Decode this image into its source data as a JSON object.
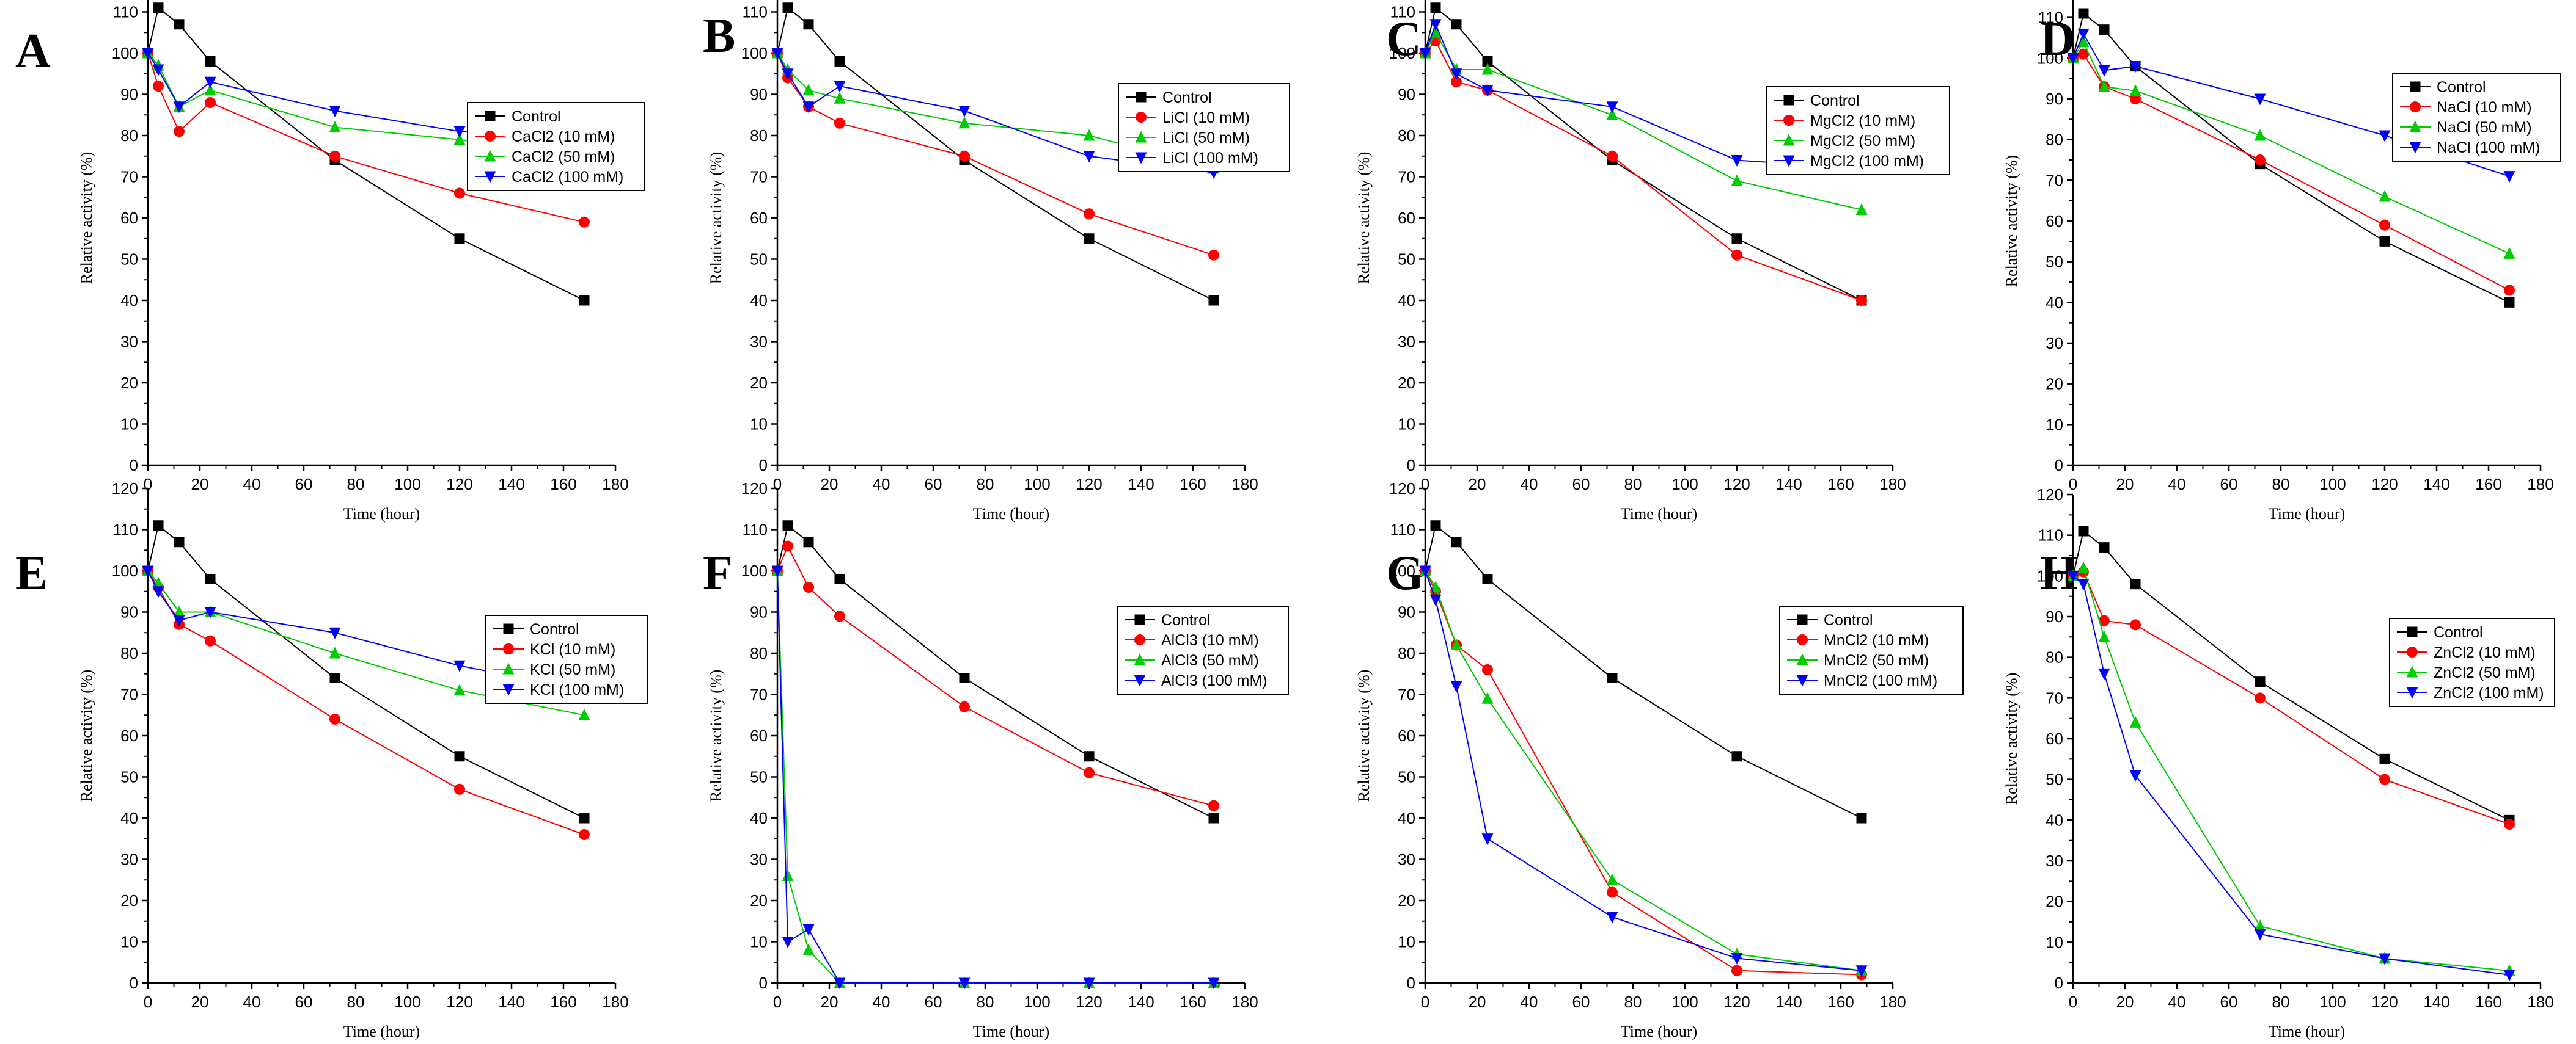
{
  "chart_data": [
    {
      "panel": "A",
      "type": "line",
      "xlabel": "Time (hour)",
      "ylabel": "Relative activity (%)",
      "xlim": [
        0,
        180
      ],
      "ylim": [
        0,
        120
      ],
      "xticks": [
        "0",
        "20",
        "40",
        "60",
        "80",
        "100",
        "120",
        "140",
        "160",
        "180"
      ],
      "yticks": [
        "0",
        "10",
        "20",
        "30",
        "40",
        "50",
        "60",
        "70",
        "80",
        "90",
        "100",
        "110",
        "120"
      ],
      "legend_position": "top-right",
      "series": [
        {
          "name": "Control",
          "color": "#000000",
          "marker": "square",
          "x": [
            0,
            4,
            12,
            24,
            72,
            120,
            168
          ],
          "y": [
            100,
            111,
            107,
            98,
            74,
            55,
            40
          ]
        },
        {
          "name": "CaCl2 (10 mM)",
          "color": "#ff0000",
          "marker": "circle",
          "x": [
            0,
            4,
            12,
            24,
            72,
            120,
            168
          ],
          "y": [
            100,
            92,
            81,
            88,
            75,
            66,
            59
          ]
        },
        {
          "name": "CaCl2 (50 mM)",
          "color": "#00cc00",
          "marker": "triangle-up",
          "x": [
            0,
            4,
            12,
            24,
            72,
            120,
            168
          ],
          "y": [
            100,
            97,
            87,
            91,
            82,
            79,
            75
          ]
        },
        {
          "name": "CaCl2 (100 mM)",
          "color": "#0000ff",
          "marker": "triangle-down",
          "x": [
            0,
            4,
            12,
            24,
            72,
            120,
            168
          ],
          "y": [
            100,
            96,
            87,
            93,
            86,
            81,
            81
          ]
        }
      ]
    },
    {
      "panel": "B",
      "type": "line",
      "xlabel": "Time (hour)",
      "ylabel": "Relative activity (%)",
      "xlim": [
        0,
        180
      ],
      "ylim": [
        0,
        120
      ],
      "xticks": [
        "0",
        "20",
        "40",
        "60",
        "80",
        "100",
        "120",
        "140",
        "160",
        "180"
      ],
      "yticks": [
        "0",
        "10",
        "20",
        "30",
        "40",
        "50",
        "60",
        "70",
        "80",
        "90",
        "100",
        "110",
        "120"
      ],
      "legend_position": "top-right",
      "series": [
        {
          "name": "Control",
          "color": "#000000",
          "marker": "square",
          "x": [
            0,
            4,
            12,
            24,
            72,
            120,
            168
          ],
          "y": [
            100,
            111,
            107,
            98,
            74,
            55,
            40
          ]
        },
        {
          "name": "LiCl (10 mM)",
          "color": "#ff0000",
          "marker": "circle",
          "x": [
            0,
            4,
            12,
            24,
            72,
            120,
            168
          ],
          "y": [
            100,
            94,
            87,
            83,
            75,
            61,
            51
          ]
        },
        {
          "name": "LiCl (50 mM)",
          "color": "#00cc00",
          "marker": "triangle-up",
          "x": [
            0,
            4,
            12,
            24,
            72,
            120,
            168
          ],
          "y": [
            100,
            96,
            91,
            89,
            83,
            80,
            72
          ]
        },
        {
          "name": "LiCl (100 mM)",
          "color": "#0000ff",
          "marker": "triangle-down",
          "x": [
            0,
            4,
            12,
            24,
            72,
            120,
            168
          ],
          "y": [
            100,
            95,
            87,
            92,
            86,
            75,
            71
          ]
        }
      ]
    },
    {
      "panel": "C",
      "type": "line",
      "xlabel": "Time (hour)",
      "ylabel": "Relative activity (%)",
      "xlim": [
        0,
        180
      ],
      "ylim": [
        0,
        120
      ],
      "xticks": [
        "0",
        "20",
        "40",
        "60",
        "80",
        "100",
        "120",
        "140",
        "160",
        "180"
      ],
      "yticks": [
        "0",
        "10",
        "20",
        "30",
        "40",
        "50",
        "60",
        "70",
        "80",
        "90",
        "100",
        "110",
        "120"
      ],
      "legend_position": "top-right",
      "series": [
        {
          "name": "Control",
          "color": "#000000",
          "marker": "square",
          "x": [
            0,
            4,
            12,
            24,
            72,
            120,
            168
          ],
          "y": [
            100,
            111,
            107,
            98,
            74,
            55,
            40
          ]
        },
        {
          "name": "MgCl2 (10 mM)",
          "color": "#ff0000",
          "marker": "circle",
          "x": [
            0,
            4,
            12,
            24,
            72,
            120,
            168
          ],
          "y": [
            100,
            103,
            93,
            91,
            75,
            51,
            40
          ]
        },
        {
          "name": "MgCl2 (50 mM)",
          "color": "#00cc00",
          "marker": "triangle-up",
          "x": [
            0,
            4,
            12,
            24,
            72,
            120,
            168
          ],
          "y": [
            100,
            105,
            96,
            96,
            85,
            69,
            62
          ]
        },
        {
          "name": "MgCl2 (100 mM)",
          "color": "#0000ff",
          "marker": "triangle-down",
          "x": [
            0,
            4,
            12,
            24,
            72,
            120,
            168
          ],
          "y": [
            100,
            107,
            95,
            91,
            87,
            74,
            72
          ]
        }
      ]
    },
    {
      "panel": "D",
      "type": "line",
      "xlabel": "Time (hour)",
      "ylabel": "Relative activity (%)",
      "xlim": [
        0,
        180
      ],
      "ylim": [
        0,
        120
      ],
      "xticks": [
        "0",
        "20",
        "40",
        "60",
        "80",
        "100",
        "120",
        "140",
        "160",
        "180"
      ],
      "yticks": [
        "0",
        "10",
        "20",
        "30",
        "40",
        "50",
        "60",
        "70",
        "80",
        "90",
        "100",
        "110",
        "120"
      ],
      "legend_position": "top-right",
      "series": [
        {
          "name": "Control",
          "color": "#000000",
          "marker": "square",
          "x": [
            0,
            4,
            12,
            24,
            72,
            120,
            168
          ],
          "y": [
            100,
            111,
            107,
            98,
            74,
            55,
            40
          ]
        },
        {
          "name": "NaCl (10 mM)",
          "color": "#ff0000",
          "marker": "circle",
          "x": [
            0,
            4,
            12,
            24,
            72,
            120,
            168
          ],
          "y": [
            100,
            101,
            93,
            90,
            75,
            59,
            43
          ]
        },
        {
          "name": "NaCl (50 mM)",
          "color": "#00cc00",
          "marker": "triangle-up",
          "x": [
            0,
            4,
            12,
            24,
            72,
            120,
            168
          ],
          "y": [
            100,
            104,
            93,
            92,
            81,
            66,
            52
          ]
        },
        {
          "name": "NaCl (100 mM)",
          "color": "#0000ff",
          "marker": "triangle-down",
          "x": [
            0,
            4,
            12,
            24,
            72,
            120,
            168
          ],
          "y": [
            100,
            106,
            97,
            98,
            90,
            81,
            71
          ]
        }
      ]
    },
    {
      "panel": "E",
      "type": "line",
      "xlabel": "Time (hour)",
      "ylabel": "Relative activity (%)",
      "xlim": [
        0,
        180
      ],
      "ylim": [
        0,
        120
      ],
      "xticks": [
        "0",
        "20",
        "40",
        "60",
        "80",
        "100",
        "120",
        "140",
        "160",
        "180"
      ],
      "yticks": [
        "0",
        "10",
        "20",
        "30",
        "40",
        "50",
        "60",
        "70",
        "80",
        "90",
        "100",
        "110",
        "120"
      ],
      "legend_position": "top-right",
      "series": [
        {
          "name": "Control",
          "color": "#000000",
          "marker": "square",
          "x": [
            0,
            4,
            12,
            24,
            72,
            120,
            168
          ],
          "y": [
            100,
            111,
            107,
            98,
            74,
            55,
            40
          ]
        },
        {
          "name": "KCl (10 mM)",
          "color": "#ff0000",
          "marker": "circle",
          "x": [
            0,
            4,
            12,
            24,
            72,
            120,
            168
          ],
          "y": [
            100,
            96,
            87,
            83,
            64,
            47,
            36
          ]
        },
        {
          "name": "KCl (50 mM)",
          "color": "#00cc00",
          "marker": "triangle-up",
          "x": [
            0,
            4,
            12,
            24,
            72,
            120,
            168
          ],
          "y": [
            100,
            97,
            90,
            90,
            80,
            71,
            65
          ]
        },
        {
          "name": "KCl (100 mM)",
          "color": "#0000ff",
          "marker": "triangle-down",
          "x": [
            0,
            4,
            12,
            24,
            72,
            120,
            168
          ],
          "y": [
            100,
            95,
            88,
            90,
            85,
            77,
            71
          ]
        }
      ]
    },
    {
      "panel": "F",
      "type": "line",
      "xlabel": "Time (hour)",
      "ylabel": "Relative activity (%)",
      "xlim": [
        0,
        180
      ],
      "ylim": [
        0,
        120
      ],
      "xticks": [
        "0",
        "20",
        "40",
        "60",
        "80",
        "100",
        "120",
        "140",
        "160",
        "180"
      ],
      "yticks": [
        "0",
        "10",
        "20",
        "30",
        "40",
        "50",
        "60",
        "70",
        "80",
        "90",
        "100",
        "110",
        "120"
      ],
      "legend_position": "top-right",
      "series": [
        {
          "name": "Control",
          "color": "#000000",
          "marker": "square",
          "x": [
            0,
            4,
            12,
            24,
            72,
            120,
            168
          ],
          "y": [
            100,
            111,
            107,
            98,
            74,
            55,
            40
          ]
        },
        {
          "name": "AlCl3 (10 mM)",
          "color": "#ff0000",
          "marker": "circle",
          "x": [
            0,
            4,
            12,
            24,
            72,
            120,
            168
          ],
          "y": [
            100,
            106,
            96,
            89,
            67,
            51,
            43
          ]
        },
        {
          "name": "AlCl3 (50 mM)",
          "color": "#00cc00",
          "marker": "triangle-up",
          "x": [
            0,
            4,
            12,
            24,
            72,
            120,
            168
          ],
          "y": [
            100,
            26,
            8,
            0,
            0,
            0,
            0
          ]
        },
        {
          "name": "AlCl3 (100 mM)",
          "color": "#0000ff",
          "marker": "triangle-down",
          "x": [
            0,
            4,
            12,
            24,
            72,
            120,
            168
          ],
          "y": [
            100,
            10,
            13,
            0,
            0,
            0,
            0
          ]
        }
      ]
    },
    {
      "panel": "G",
      "type": "line",
      "xlabel": "Time (hour)",
      "ylabel": "Relative activity (%)",
      "xlim": [
        0,
        180
      ],
      "ylim": [
        0,
        120
      ],
      "xticks": [
        "0",
        "20",
        "40",
        "60",
        "80",
        "100",
        "120",
        "140",
        "160",
        "180"
      ],
      "yticks": [
        "0",
        "10",
        "20",
        "30",
        "40",
        "50",
        "60",
        "70",
        "80",
        "90",
        "100",
        "110",
        "120"
      ],
      "legend_position": "top-right",
      "series": [
        {
          "name": "Control",
          "color": "#000000",
          "marker": "square",
          "x": [
            0,
            4,
            12,
            24,
            72,
            120,
            168
          ],
          "y": [
            100,
            111,
            107,
            98,
            74,
            55,
            40
          ]
        },
        {
          "name": "MnCl2 (10 mM)",
          "color": "#ff0000",
          "marker": "circle",
          "x": [
            0,
            4,
            12,
            24,
            72,
            120,
            168
          ],
          "y": [
            100,
            95,
            82,
            76,
            22,
            3,
            2
          ]
        },
        {
          "name": "MnCl2 (50 mM)",
          "color": "#00cc00",
          "marker": "triangle-up",
          "x": [
            0,
            4,
            12,
            24,
            72,
            120,
            168
          ],
          "y": [
            100,
            96,
            82,
            69,
            25,
            7,
            3
          ]
        },
        {
          "name": "MnCl2 (100 mM)",
          "color": "#0000ff",
          "marker": "triangle-down",
          "x": [
            0,
            4,
            12,
            24,
            72,
            120,
            168
          ],
          "y": [
            100,
            93,
            72,
            35,
            16,
            6,
            3
          ]
        }
      ]
    },
    {
      "panel": "H",
      "type": "line",
      "xlabel": "Time (hour)",
      "ylabel": "Relative activity (%)",
      "xlim": [
        0,
        180
      ],
      "ylim": [
        0,
        120
      ],
      "xticks": [
        "0",
        "20",
        "40",
        "60",
        "80",
        "100",
        "120",
        "140",
        "160",
        "180"
      ],
      "yticks": [
        "0",
        "10",
        "20",
        "30",
        "40",
        "50",
        "60",
        "70",
        "80",
        "90",
        "100",
        "110",
        "120"
      ],
      "legend_position": "top-right",
      "series": [
        {
          "name": "Control",
          "color": "#000000",
          "marker": "square",
          "x": [
            0,
            4,
            12,
            24,
            72,
            120,
            168
          ],
          "y": [
            100,
            111,
            107,
            98,
            74,
            55,
            40
          ]
        },
        {
          "name": "ZnCl2 (10 mM)",
          "color": "#ff0000",
          "marker": "circle",
          "x": [
            0,
            4,
            12,
            24,
            72,
            120,
            168
          ],
          "y": [
            100,
            101,
            89,
            88,
            70,
            50,
            39
          ]
        },
        {
          "name": "ZnCl2 (50 mM)",
          "color": "#00cc00",
          "marker": "triangle-up",
          "x": [
            0,
            4,
            12,
            24,
            72,
            120,
            168
          ],
          "y": [
            100,
            102,
            85,
            64,
            14,
            6,
            3
          ]
        },
        {
          "name": "ZnCl2 (100 mM)",
          "color": "#0000ff",
          "marker": "triangle-down",
          "x": [
            0,
            4,
            12,
            24,
            72,
            120,
            168
          ],
          "y": [
            100,
            98,
            76,
            51,
            12,
            6,
            2
          ]
        }
      ]
    }
  ]
}
